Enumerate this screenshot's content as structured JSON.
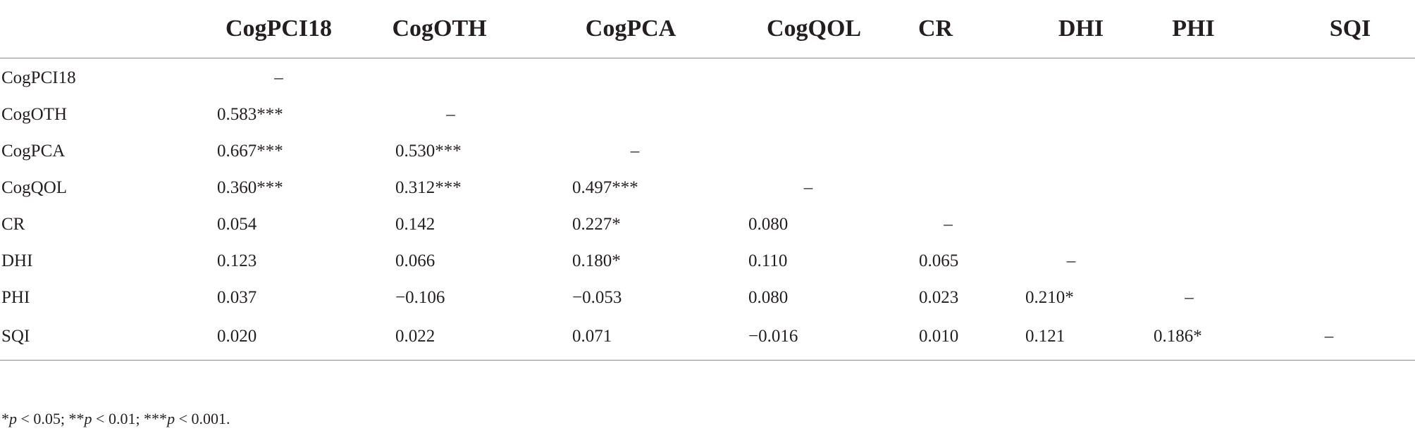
{
  "table": {
    "corner": "",
    "columns": [
      "CogPCI18",
      "CogOTH",
      "CogPCA",
      "CogQOL",
      "CR",
      "DHI",
      "PHI",
      "SQI"
    ],
    "rows": [
      {
        "label": "CogPCI18",
        "cells": [
          "–",
          "",
          "",
          "",
          "",
          "",
          "",
          ""
        ]
      },
      {
        "label": "CogOTH",
        "cells": [
          "0.583***",
          "–",
          "",
          "",
          "",
          "",
          "",
          ""
        ]
      },
      {
        "label": "CogPCA",
        "cells": [
          "0.667***",
          "0.530***",
          "–",
          "",
          "",
          "",
          "",
          ""
        ]
      },
      {
        "label": "CogQOL",
        "cells": [
          "0.360***",
          "0.312***",
          "0.497***",
          "–",
          "",
          "",
          "",
          ""
        ]
      },
      {
        "label": "CR",
        "cells": [
          "0.054",
          "0.142",
          "0.227*",
          "0.080",
          "–",
          "",
          "",
          ""
        ]
      },
      {
        "label": "DHI",
        "cells": [
          "0.123",
          "0.066",
          "0.180*",
          "0.110",
          "0.065",
          "–",
          "",
          ""
        ]
      },
      {
        "label": "PHI",
        "cells": [
          "0.037",
          "−0.106",
          "−0.053",
          "0.080",
          "0.023",
          "0.210*",
          "–",
          ""
        ]
      },
      {
        "label": "SQI",
        "cells": [
          "0.020",
          "0.022",
          "0.071",
          "−0.016",
          "0.010",
          "0.121",
          "0.186*",
          "–"
        ]
      }
    ]
  },
  "footnote": {
    "parts": [
      {
        "text": "*",
        "italic": false
      },
      {
        "text": "p",
        "italic": true
      },
      {
        "text": " < 0.05; **",
        "italic": false
      },
      {
        "text": "p",
        "italic": true
      },
      {
        "text": " < 0.01; ***",
        "italic": false
      },
      {
        "text": "p",
        "italic": true
      },
      {
        "text": " < 0.001.",
        "italic": false
      }
    ]
  }
}
